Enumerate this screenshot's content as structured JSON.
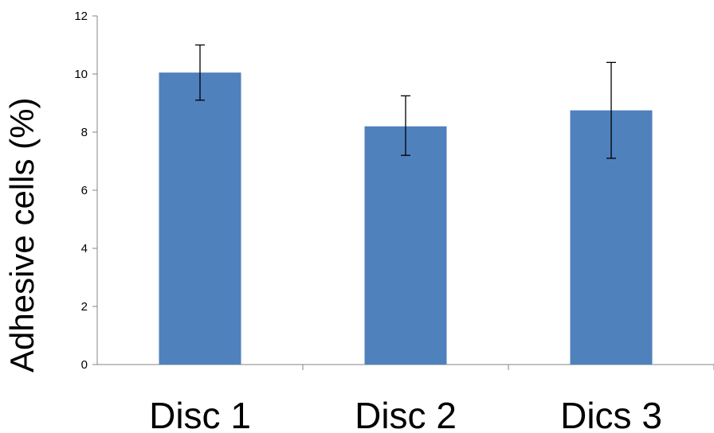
{
  "chart_data": {
    "type": "bar",
    "title": "",
    "xlabel": "",
    "ylabel": "Adhesive cells (%)",
    "categories": [
      "Disc 1",
      "Disc 2",
      "Dics 3"
    ],
    "values": [
      10.05,
      8.2,
      8.75
    ],
    "error_low": [
      9.1,
      7.2,
      7.1
    ],
    "error_high": [
      11.0,
      9.25,
      10.4
    ],
    "ylim": [
      0,
      12
    ],
    "yticks": [
      "0",
      "2",
      "4",
      "6",
      "8",
      "10",
      "12"
    ],
    "grid": false,
    "legend": "none",
    "bar_color": "#4F81BD"
  }
}
